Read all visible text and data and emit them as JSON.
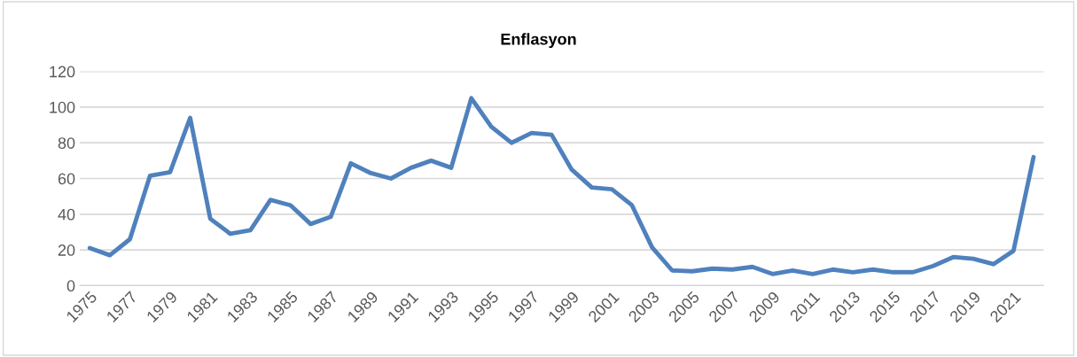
{
  "chart_data": {
    "type": "line",
    "title": "Enflasyon",
    "categories": [
      "1975",
      null,
      "1977",
      null,
      "1979",
      null,
      "1981",
      null,
      "1983",
      null,
      "1985",
      null,
      "1987",
      null,
      "1989",
      null,
      "1991",
      null,
      "1993",
      null,
      "1995",
      null,
      "1997",
      null,
      "1999",
      null,
      "2001",
      null,
      "2003",
      null,
      "2005",
      null,
      "2007",
      null,
      "2009",
      null,
      "2011",
      null,
      "2013",
      null,
      "2015",
      null,
      "2017",
      null,
      "2019",
      null,
      "2021",
      null
    ],
    "series": [
      {
        "color": "#4f81bd",
        "values": [
          21,
          17,
          26,
          61.5,
          63.5,
          94,
          37.5,
          29,
          31,
          48,
          45,
          34.5,
          38.5,
          68.5,
          63,
          60,
          66,
          70,
          66,
          105,
          89,
          80,
          85.5,
          84.5,
          65,
          55,
          54,
          45,
          21.5,
          8.5,
          8,
          9.5,
          9,
          10.5,
          6.5,
          8.5,
          6.5,
          9,
          7.5,
          9,
          7.5,
          7.5,
          11,
          16,
          15,
          12,
          19.5,
          72
        ]
      }
    ],
    "ylim": [
      0,
      120
    ],
    "yticks": [
      0,
      20,
      40,
      60,
      80,
      100,
      120
    ],
    "grid": "y",
    "legend": false,
    "marker": "none",
    "line_style": "solid"
  }
}
